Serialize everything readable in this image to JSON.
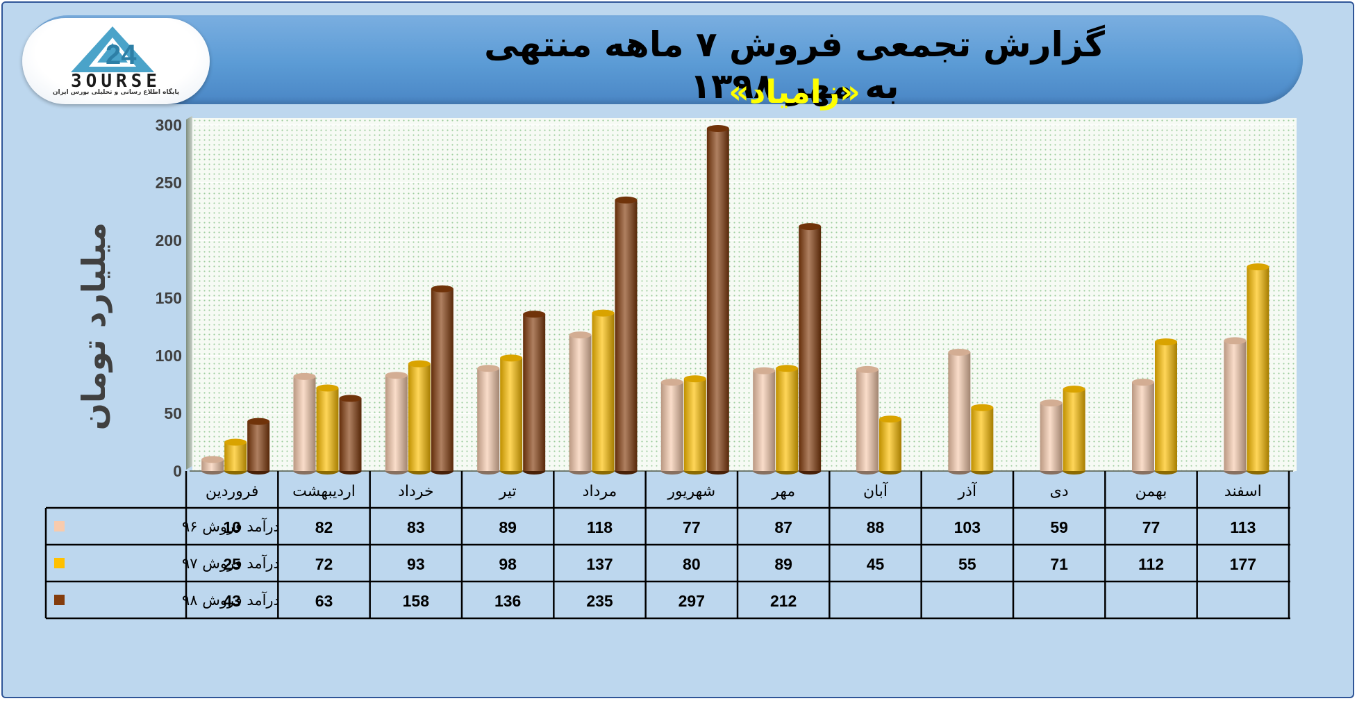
{
  "header": {
    "title": "گزارش تجمعی فروش ۷ ماهه منتهی به مهر ۱۳۹۸",
    "subtitle": "«زامیاد»"
  },
  "logo": {
    "text": "3OURSE",
    "tagline": "پایگاه اطلاع رسانی و تحلیلی بورس ایران"
  },
  "colors": {
    "series_96": "#f8cbad",
    "series_97": "#ffc000",
    "series_98": "#843c0c"
  },
  "chart_data": {
    "type": "bar",
    "ylabel": "میلیارد تومان",
    "ylim": [
      0,
      300
    ],
    "yticks": [
      0,
      50,
      100,
      150,
      200,
      250,
      300
    ],
    "categories": [
      "فروردین",
      "اردیبهشت",
      "خرداد",
      "تیر",
      "مرداد",
      "شهریور",
      "مهر",
      "آبان",
      "آذر",
      "دی",
      "بهمن",
      "اسفند"
    ],
    "series": [
      {
        "name": "درآمد فروش ۹۶",
        "values": [
          10,
          82,
          83,
          89,
          118,
          77,
          87,
          88,
          103,
          59,
          77,
          113
        ]
      },
      {
        "name": "درآمد فروش ۹۷",
        "values": [
          25,
          72,
          93,
          98,
          137,
          80,
          89,
          45,
          55,
          71,
          112,
          177
        ]
      },
      {
        "name": "درآمد فروش ۹۸",
        "values": [
          43,
          63,
          158,
          136,
          235,
          297,
          212,
          null,
          null,
          null,
          null,
          null
        ]
      }
    ],
    "legend": "data-table"
  }
}
